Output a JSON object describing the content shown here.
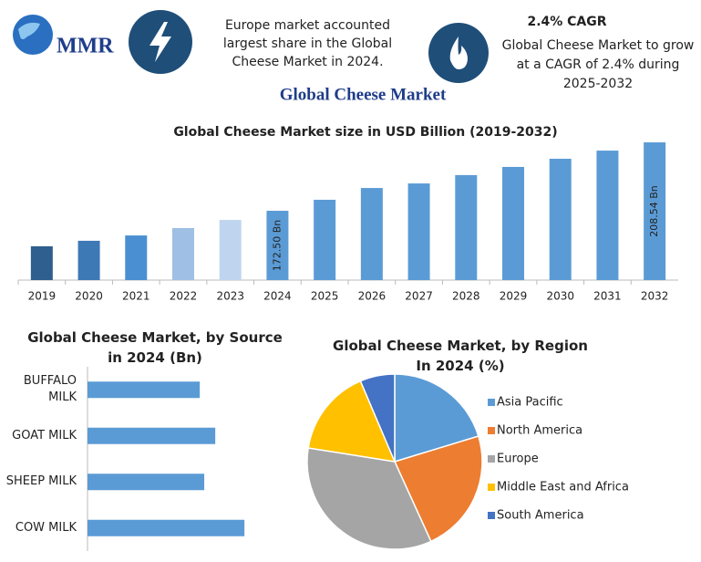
{
  "header": {
    "logo": "MMR",
    "note": "Europe market accounted largest share in the Global Cheese Market in 2024.",
    "cagr_title": "2.4% CAGR",
    "cagr_text": "Global Cheese Market to grow at a CAGR of 2.4% during 2025-2032",
    "title": "Global Cheese Market"
  },
  "chart_data": [
    {
      "type": "bar",
      "title": "Global Cheese Market size in USD Billion (2019-2032)",
      "categories": [
        "2019",
        "2020",
        "2021",
        "2022",
        "2023",
        "2024",
        "2025",
        "2026",
        "2027",
        "2028",
        "2029",
        "2030",
        "2031",
        "2032"
      ],
      "values": [
        153.8,
        156.7,
        159.5,
        163.4,
        167.7,
        172.5,
        178.3,
        184.5,
        186.9,
        191.3,
        195.6,
        199.9,
        204.2,
        208.54
      ],
      "value_labels": [
        null,
        null,
        null,
        null,
        null,
        "172.50 Bn",
        null,
        null,
        null,
        null,
        null,
        null,
        null,
        "208.54 Bn"
      ],
      "colors": [
        "#2e5f8e",
        "#3d79b5",
        "#4a8fd2",
        "#9fbfe4",
        "#bfd5ef",
        "#5b9bd5",
        "#5b9bd5",
        "#5b9bd5",
        "#5b9bd5",
        "#5b9bd5",
        "#5b9bd5",
        "#5b9bd5",
        "#5b9bd5",
        "#5b9bd5"
      ],
      "ylim": [
        136,
        210
      ]
    },
    {
      "type": "hbar",
      "title": "Global Cheese Market, by Source in 2024 (Bn)",
      "categories": [
        "BUFFALO MILK",
        "GOAT MILK",
        "SHEEP MILK",
        "COW MILK"
      ],
      "values": [
        37.7,
        42.9,
        39.2,
        52.7
      ],
      "color": "#5b9bd5",
      "xlim": [
        0,
        60
      ]
    },
    {
      "type": "pie",
      "title": "Global Cheese Market, by Region In 2024 (%)",
      "categories": [
        "Asia Pacific",
        "North America",
        "Europe",
        "Middle East and Africa",
        "South America"
      ],
      "values": [
        20.3,
        22.9,
        34.3,
        16.1,
        6.4
      ],
      "colors": [
        "#5b9bd5",
        "#ed7d31",
        "#a5a5a5",
        "#ffc000",
        "#4472c4"
      ],
      "legend": "right"
    }
  ]
}
